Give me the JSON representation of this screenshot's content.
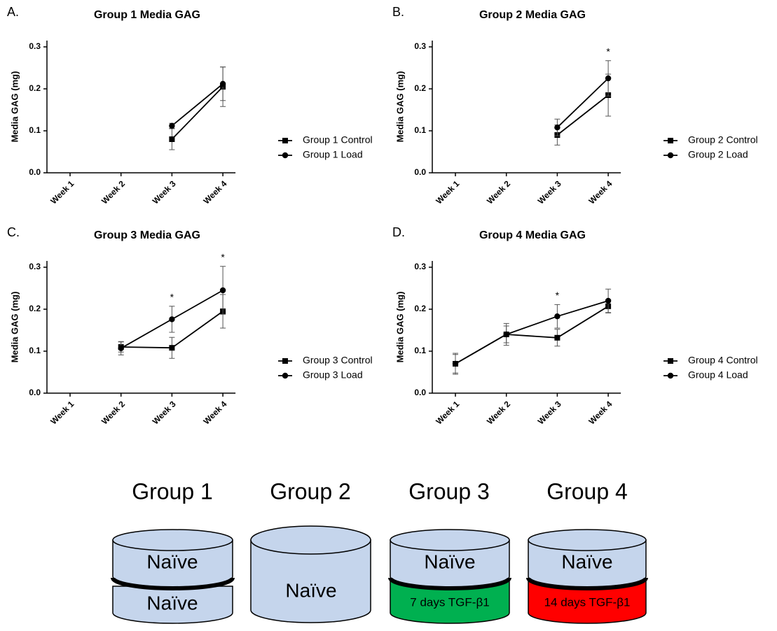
{
  "chart_data": [
    {
      "type": "line",
      "panel_label": "A.",
      "title": "Group 1 Media GAG",
      "y_label": "Media GAG (mg)",
      "categories": [
        "Week 1",
        "Week 2",
        "Week 3",
        "Week 4"
      ],
      "series": [
        {
          "name": "Group 1 Control",
          "color": "#000000",
          "marker": "square",
          "values": [
            null,
            null,
            0.08,
            0.205
          ],
          "errors": [
            null,
            null,
            0.025,
            0.047
          ]
        },
        {
          "name": "Group 1 Load",
          "color": "#000000",
          "marker": "circle",
          "values": [
            null,
            null,
            0.112,
            0.212
          ],
          "errors": [
            null,
            null,
            0.006,
            0.04
          ]
        }
      ],
      "ylim": [
        0,
        0.315
      ],
      "yticks": [
        {
          "value": 0,
          "label": "0.0"
        },
        0.1,
        0.2,
        0.3
      ],
      "legend": "right",
      "annotations": []
    },
    {
      "type": "line",
      "panel_label": "B.",
      "title": "Group 2 Media GAG",
      "y_label": "Media GAG (mg)",
      "categories": [
        "Week 1",
        "Week 2",
        "Week 3",
        "Week 4"
      ],
      "series": [
        {
          "name": "Group 2 Control",
          "color": "#000000",
          "marker": "square",
          "values": [
            null,
            null,
            0.09,
            0.185
          ],
          "errors": [
            null,
            null,
            0.024,
            0.05
          ]
        },
        {
          "name": "Group 2 Load",
          "color": "#000000",
          "marker": "circle",
          "values": [
            null,
            null,
            0.108,
            0.225
          ],
          "errors": [
            null,
            null,
            0.02,
            0.042
          ]
        }
      ],
      "ylim": [
        0,
        0.315
      ],
      "yticks": [
        {
          "value": 0,
          "label": "0.0"
        },
        0.1,
        0.2,
        0.3
      ],
      "legend": "right",
      "annotations": [
        {
          "text": "*",
          "category": "Week 4"
        }
      ]
    },
    {
      "type": "line",
      "panel_label": "C.",
      "title": "Group 3 Media GAG",
      "y_label": "Media GAG (mg)",
      "categories": [
        "Week 1",
        "Week 2",
        "Week 3",
        "Week 4"
      ],
      "series": [
        {
          "name": "Group 3 Control",
          "color": "#000000",
          "marker": "square",
          "values": [
            null,
            0.11,
            0.108,
            0.195
          ],
          "errors": [
            null,
            0.012,
            0.025,
            0.04
          ]
        },
        {
          "name": "Group 3 Load",
          "color": "#000000",
          "marker": "circle",
          "values": [
            null,
            0.107,
            0.176,
            0.245
          ],
          "errors": [
            null,
            0.016,
            0.031,
            0.057
          ]
        }
      ],
      "ylim": [
        0,
        0.315
      ],
      "yticks": [
        {
          "value": 0,
          "label": "0.0"
        },
        0.1,
        0.2,
        0.3
      ],
      "legend": "right",
      "annotations": [
        {
          "text": "*",
          "category": "Week 3"
        },
        {
          "text": "*",
          "category": "Week 4"
        }
      ]
    },
    {
      "type": "line",
      "panel_label": "D.",
      "title": "Group 4 Media GAG",
      "y_label": "Media GAG (mg)",
      "categories": [
        "Week 1",
        "Week 2",
        "Week 3",
        "Week 4"
      ],
      "series": [
        {
          "name": "Group 4 Control",
          "color": "#000000",
          "marker": "square",
          "values": [
            0.07,
            0.14,
            0.132,
            0.207
          ],
          "errors": [
            0.025,
            0.026,
            0.02,
            0.016
          ]
        },
        {
          "name": "Group 4 Load",
          "color": "#000000",
          "marker": "circle",
          "values": [
            0.07,
            0.14,
            0.183,
            0.22
          ],
          "errors": [
            0.022,
            0.02,
            0.028,
            0.028
          ]
        }
      ],
      "ylim": [
        0,
        0.315
      ],
      "yticks": [
        {
          "value": 0,
          "label": "0.0"
        },
        0.1,
        0.2,
        0.3
      ],
      "legend": "right",
      "annotations": [
        {
          "text": "*",
          "category": "Week 3"
        }
      ]
    }
  ],
  "diagram": {
    "groups": [
      {
        "label": "Group 1",
        "layers": [
          "Naïve",
          "Naïve"
        ]
      },
      {
        "label": "Group 2",
        "layers": [
          "Naïve"
        ]
      },
      {
        "label": "Group 3",
        "layers": [
          "Naïve",
          "7 days TGF-β1"
        ]
      },
      {
        "label": "Group 4",
        "layers": [
          "Naïve",
          "14 days TGF-β1"
        ]
      }
    ]
  }
}
